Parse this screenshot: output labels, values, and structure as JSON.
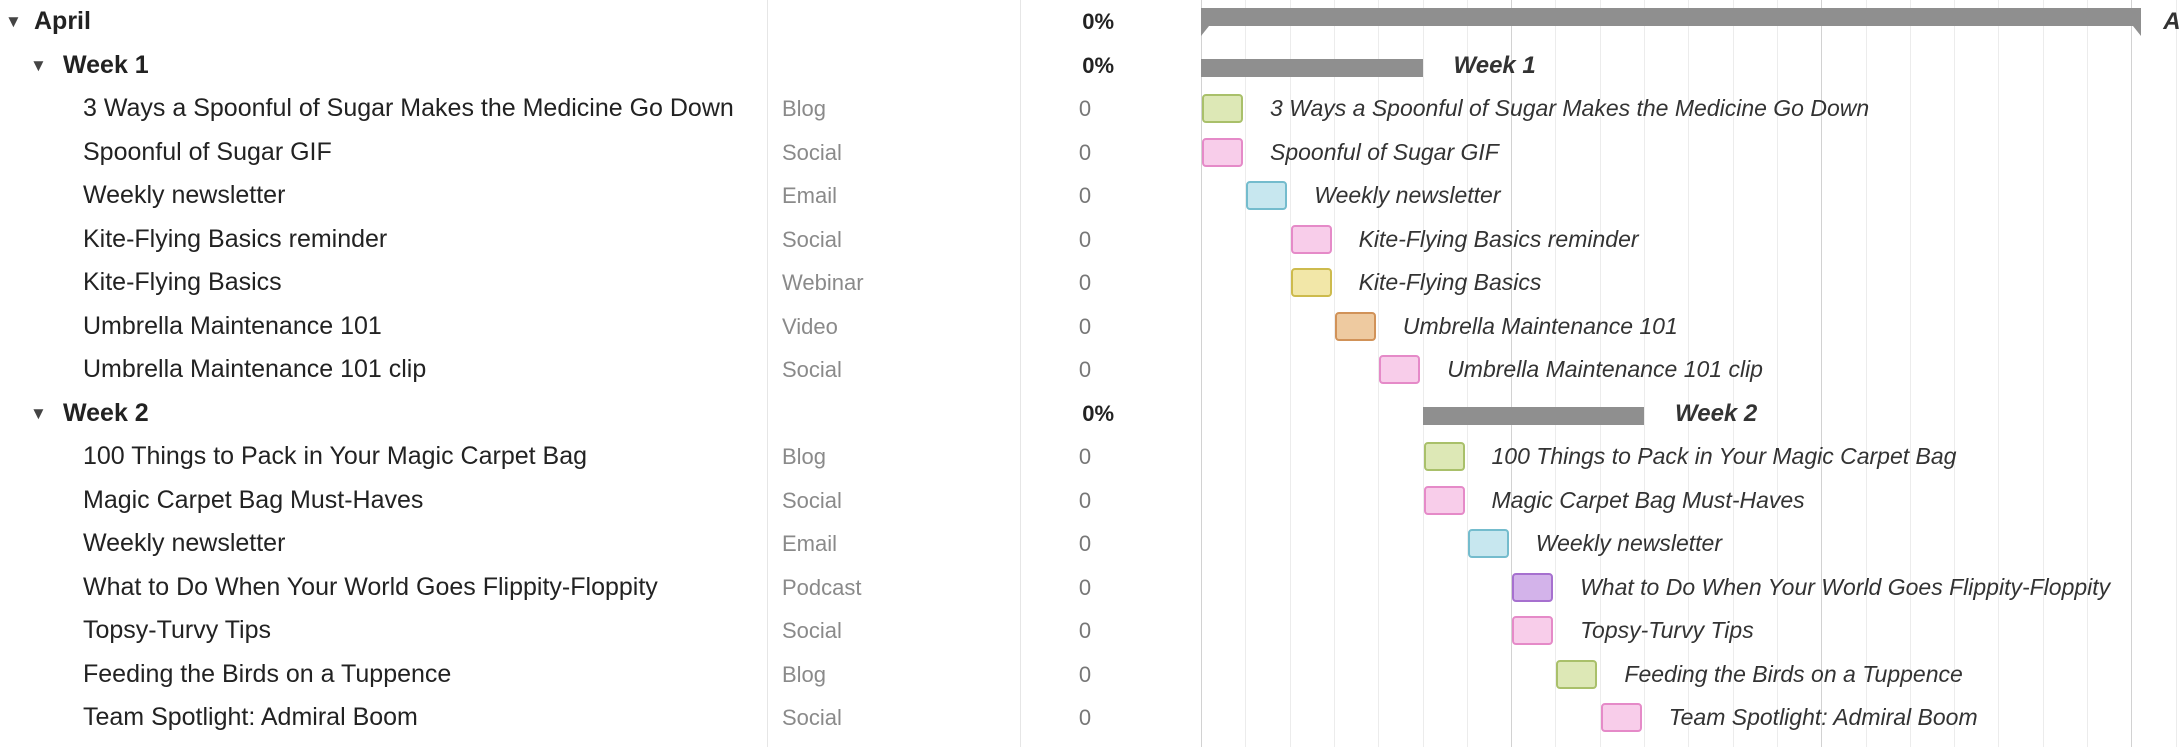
{
  "colors": {
    "blog": "#dde8b6",
    "blog_border": "#a9c06a",
    "social": "#f8cdea",
    "social_border": "#e58ac8",
    "email": "#c7e7ef",
    "email_border": "#74bccd",
    "webinar": "#f2e7a8",
    "webinar_border": "#cdbb4d",
    "video": "#eecaa0",
    "video_border": "#d19258",
    "podcast": "#d3b3ea",
    "podcast_border": "#a670cf",
    "summary": "#8f8f8f"
  },
  "month": {
    "name": "April",
    "progress": "0%",
    "icon": "caret-down-icon"
  },
  "weeks": [
    {
      "name": "Week 1",
      "progress": "0%",
      "tasks": [
        {
          "name": "3 Ways a Spoonful of Sugar Makes the Medicine Go Down",
          "type": "Blog",
          "progress": "0",
          "kind": "blog"
        },
        {
          "name": "Spoonful of Sugar GIF",
          "type": "Social",
          "progress": "0",
          "kind": "social"
        },
        {
          "name": "Weekly newsletter",
          "type": "Email",
          "progress": "0",
          "kind": "email"
        },
        {
          "name": "Kite-Flying Basics reminder",
          "type": "Social",
          "progress": "0",
          "kind": "social"
        },
        {
          "name": "Kite-Flying Basics",
          "type": "Webinar",
          "progress": "0",
          "kind": "webinar"
        },
        {
          "name": "Umbrella Maintenance 101",
          "type": "Video",
          "progress": "0",
          "kind": "video"
        },
        {
          "name": "Umbrella Maintenance 101 clip",
          "type": "Social",
          "progress": "0",
          "kind": "social"
        }
      ]
    },
    {
      "name": "Week 2",
      "progress": "0%",
      "tasks": [
        {
          "name": "100 Things to Pack in Your Magic Carpet Bag",
          "type": "Blog",
          "progress": "0",
          "kind": "blog"
        },
        {
          "name": "Magic Carpet Bag Must-Haves",
          "type": "Social",
          "progress": "0",
          "kind": "social"
        },
        {
          "name": "Weekly newsletter",
          "type": "Email",
          "progress": "0",
          "kind": "email"
        },
        {
          "name": "What to Do When Your World Goes Flippity-Floppity",
          "type": "Podcast",
          "progress": "0",
          "kind": "podcast"
        },
        {
          "name": "Topsy-Turvy Tips",
          "type": "Social",
          "progress": "0",
          "kind": "social"
        },
        {
          "name": "Feeding the Birds on a Tuppence",
          "type": "Blog",
          "progress": "0",
          "kind": "blog"
        },
        {
          "name": "Team Spotlight: Admiral Boom",
          "type": "Social",
          "progress": "0",
          "kind": "social"
        }
      ]
    }
  ]
}
